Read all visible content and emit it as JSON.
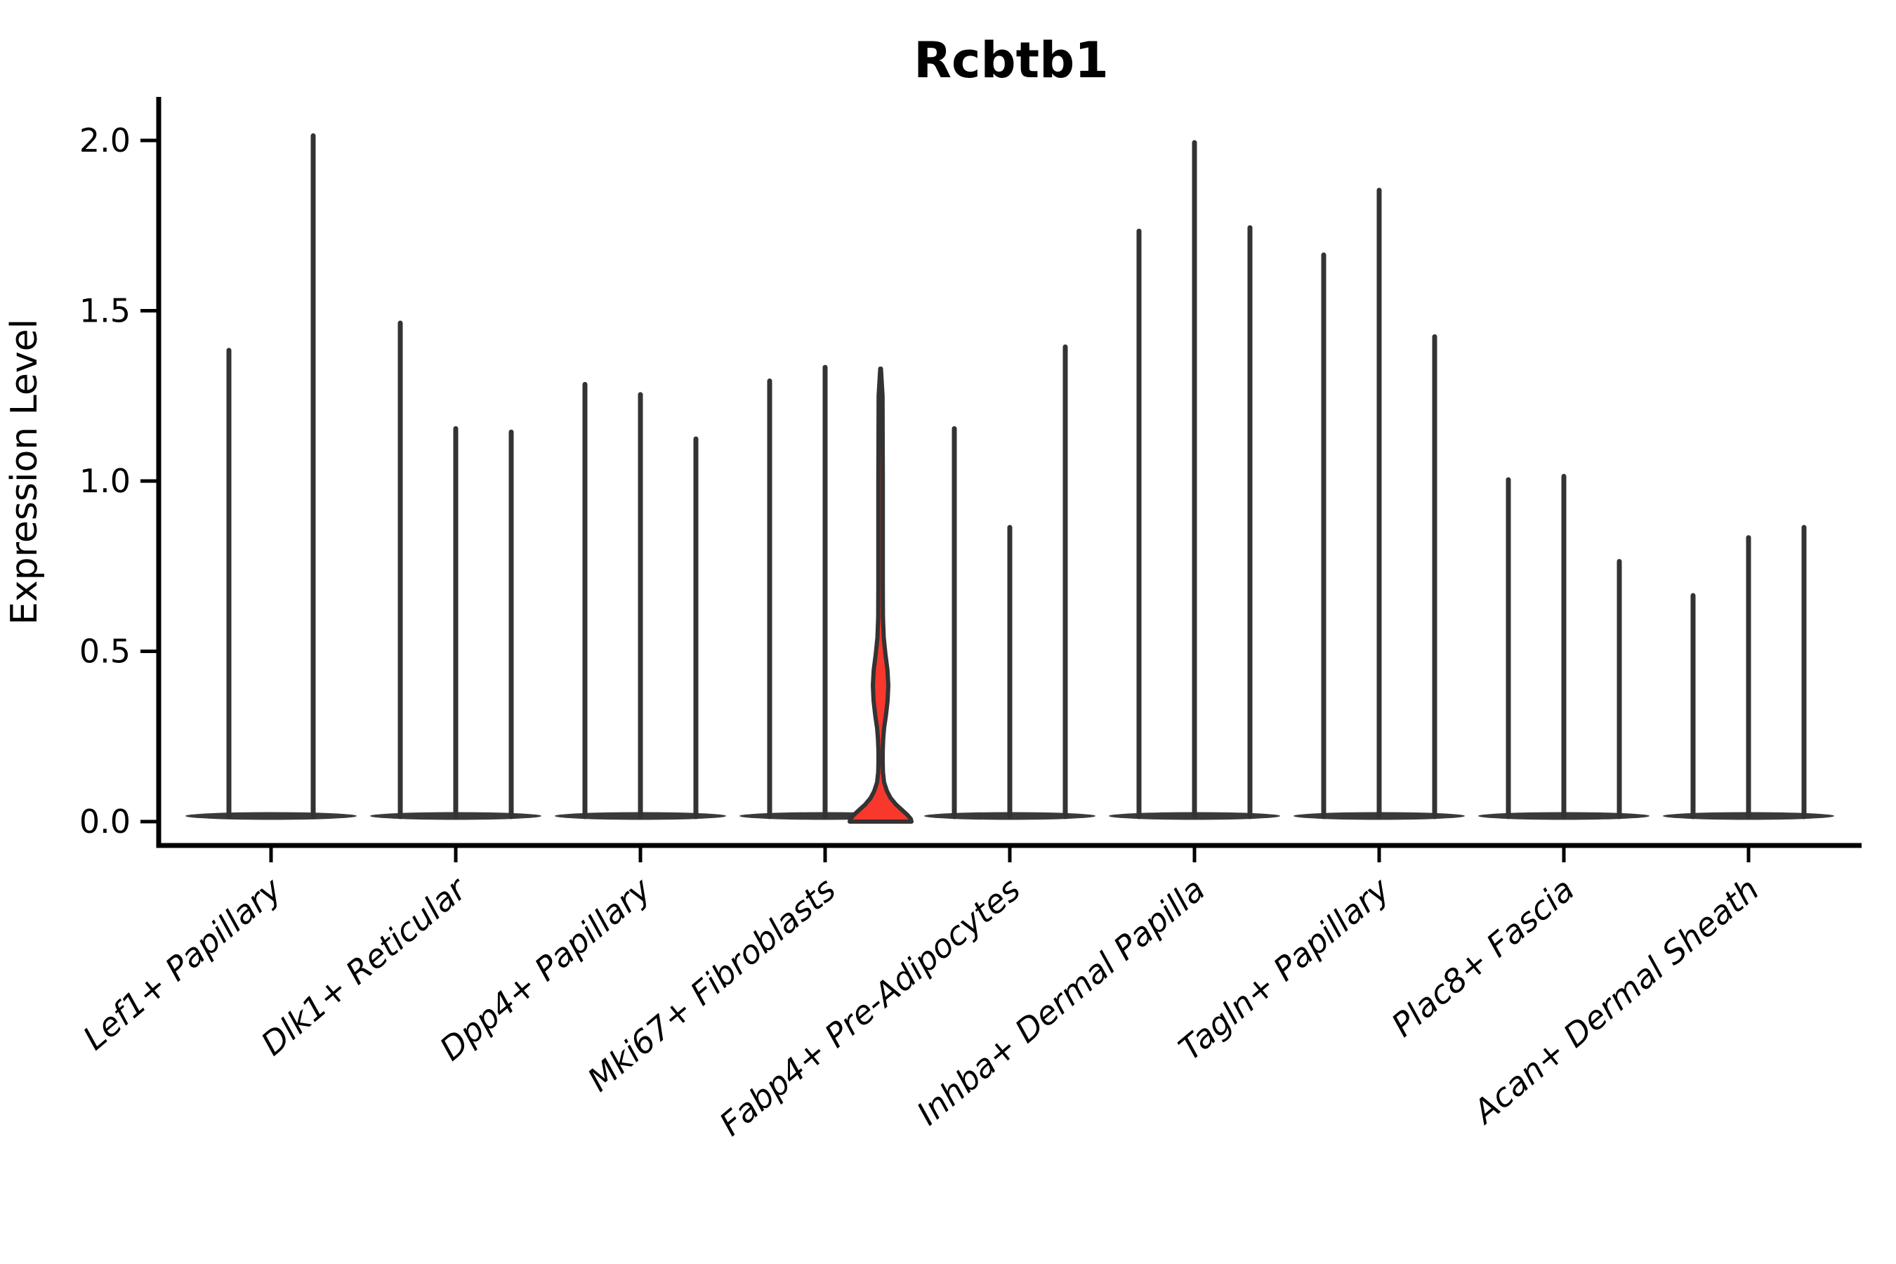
{
  "chart_data": {
    "type": "violin",
    "title": "Rcbtb1",
    "xlabel": "",
    "ylabel": "Expression Level",
    "ylim": [
      -0.07,
      2.12
    ],
    "yticks": [
      "0.0",
      "0.5",
      "1.0",
      "1.5",
      "2.0"
    ],
    "ytick_values": [
      0.0,
      0.5,
      1.0,
      1.5,
      2.0
    ],
    "xtick_rotation_deg": 40,
    "grid": false,
    "legend": "none",
    "groups": [
      {
        "category": "Lef1+ Papillary",
        "violin_maxima": [
          1.39,
          2.02
        ]
      },
      {
        "category": "Dlk1+ Reticular",
        "violin_maxima": [
          1.47,
          1.16,
          1.15
        ]
      },
      {
        "category": "Dpp4+ Papillary",
        "violin_maxima": [
          1.29,
          1.26,
          1.13
        ]
      },
      {
        "category": "Mki67+ Fibroblasts",
        "violin_maxima": [
          1.3,
          1.34,
          1.33
        ],
        "highlighted_violin_index": 2
      },
      {
        "category": "Fabp4+ Pre-Adipocytes",
        "violin_maxima": [
          1.16,
          0.87,
          1.4
        ]
      },
      {
        "category": "Inhba+ Dermal Papilla",
        "violin_maxima": [
          1.74,
          2.0,
          1.75
        ]
      },
      {
        "category": "Tagln+ Papillary",
        "violin_maxima": [
          1.67,
          1.86,
          1.43
        ]
      },
      {
        "category": "Plac8+ Fascia",
        "violin_maxima": [
          1.01,
          1.02,
          0.77
        ]
      },
      {
        "category": "Acan+ Dermal Sheath",
        "violin_maxima": [
          0.67,
          0.84,
          0.87
        ]
      }
    ],
    "highlighted_violin": {
      "category": "Mki67+ Fibroblasts",
      "violin_index": 2,
      "max": 1.33,
      "fill_color": "#f8372d",
      "profile_value_halfwidth": [
        [
          1.33,
          0.5
        ],
        [
          1.25,
          2.8
        ],
        [
          1.0,
          3.2
        ],
        [
          0.7,
          3.2
        ],
        [
          0.6,
          3.4
        ],
        [
          0.54,
          4.5
        ],
        [
          0.49,
          7.0
        ],
        [
          0.445,
          9.8
        ],
        [
          0.4,
          11.0
        ],
        [
          0.355,
          10.0
        ],
        [
          0.31,
          7.5
        ],
        [
          0.275,
          5.0
        ],
        [
          0.245,
          3.8
        ],
        [
          0.21,
          3.1
        ],
        [
          0.175,
          3.0
        ],
        [
          0.145,
          3.4
        ],
        [
          0.115,
          5.0
        ],
        [
          0.09,
          9.0
        ],
        [
          0.07,
          14.0
        ],
        [
          0.05,
          22.0
        ],
        [
          0.035,
          30.0
        ],
        [
          0.02,
          38.0
        ],
        [
          0.008,
          43.0
        ],
        [
          0.0,
          44.0
        ]
      ]
    },
    "colors": {
      "violin_stroke": "#333333",
      "baseline_fill": "#3a3a3a",
      "axis": "#000000",
      "text": "#000000",
      "background": "#ffffff",
      "highlight_fill": "#f8372d"
    }
  }
}
